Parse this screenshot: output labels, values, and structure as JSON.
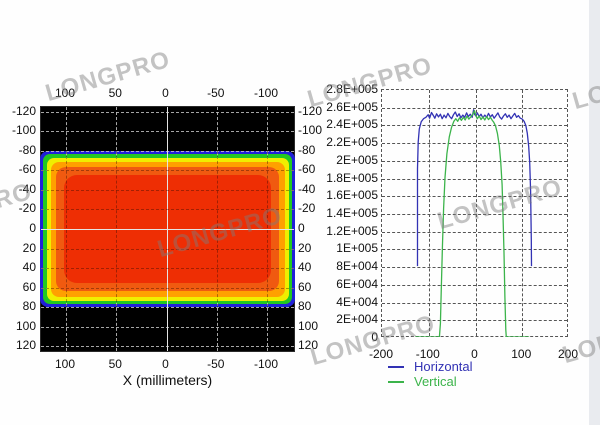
{
  "watermark": {
    "text": "LONGPRO",
    "color": "rgba(125,125,125,0.45)"
  },
  "left_plot": {
    "xlabel": "X (millimeters)",
    "x_ticks": [
      {
        "label": "100",
        "mm": 100
      },
      {
        "label": "50",
        "mm": 50
      },
      {
        "label": "0",
        "mm": 0
      },
      {
        "label": "-50",
        "mm": -50
      },
      {
        "label": "-100",
        "mm": -100
      }
    ],
    "y_ticks": [
      {
        "label": "-120",
        "mm": -120
      },
      {
        "label": "-100",
        "mm": -100
      },
      {
        "label": "-80",
        "mm": -80
      },
      {
        "label": "-60",
        "mm": -60
      },
      {
        "label": "-40",
        "mm": -40
      },
      {
        "label": "-20",
        "mm": -20
      },
      {
        "label": "0",
        "mm": 0
      },
      {
        "label": "20",
        "mm": 20
      },
      {
        "label": "40",
        "mm": 40
      },
      {
        "label": "60",
        "mm": 60
      },
      {
        "label": "80",
        "mm": 80
      },
      {
        "label": "100",
        "mm": 100
      },
      {
        "label": "120",
        "mm": 120
      }
    ]
  },
  "chart_data": [
    {
      "id": "beam_intensity_map",
      "type": "heatmap",
      "xlabel": "X (millimeters)",
      "x_axis_reversed": true,
      "x_range_mm": [
        130,
        -130
      ],
      "y_range_mm": [
        -125,
        128
      ],
      "beam_extent_x_mm": [
        -125,
        125
      ],
      "beam_extent_y_mm": [
        -80,
        80
      ],
      "peak_intensity": 250000,
      "colormap": "jet",
      "band_colors_outer_to_inner": [
        "#2020d8",
        "#22c822",
        "#f0ee00",
        "#ffa000",
        "#f05a10",
        "#ee2e04"
      ],
      "background_color": "#000000",
      "crosshair_color": "#e4e4e4"
    },
    {
      "id": "beam_profiles",
      "type": "line",
      "xlim": [
        -200,
        200
      ],
      "ylim": [
        0,
        280000
      ],
      "x_ticks": [
        {
          "label": "-200",
          "v": -200
        },
        {
          "label": "-100",
          "v": -100
        },
        {
          "label": "0",
          "v": 0
        },
        {
          "label": "100",
          "v": 100
        },
        {
          "label": "200",
          "v": 200
        }
      ],
      "y_ticks": [
        {
          "label": "2.8E+005",
          "v": 280000
        },
        {
          "label": "2.6E+005",
          "v": 260000
        },
        {
          "label": "2.4E+005",
          "v": 240000
        },
        {
          "label": "2.2E+005",
          "v": 220000
        },
        {
          "label": "2E+005",
          "v": 200000
        },
        {
          "label": "1.8E+005",
          "v": 180000
        },
        {
          "label": "1.6E+005",
          "v": 160000
        },
        {
          "label": "1.4E+005",
          "v": 140000
        },
        {
          "label": "1.2E+005",
          "v": 120000
        },
        {
          "label": "1E+005",
          "v": 100000
        },
        {
          "label": "8E+004",
          "v": 80000
        },
        {
          "label": "6E+004",
          "v": 60000
        },
        {
          "label": "4E+004",
          "v": 40000
        },
        {
          "label": "2E+004",
          "v": 20000
        },
        {
          "label": "0",
          "v": 0
        }
      ],
      "grid": "dashed",
      "legend_position": "bottom-left",
      "series": [
        {
          "name": "Horizontal",
          "color": "#3232b4",
          "points": [
            [
              -122,
              80000
            ],
            [
              -122,
              190000
            ],
            [
              -120.5,
              220000
            ],
            [
              -118,
              235000
            ],
            [
              -114,
              243000
            ],
            [
              -109,
              246500
            ],
            [
              -104,
              248000
            ],
            [
              -99,
              251000
            ],
            [
              -96,
              247000
            ],
            [
              -92,
              253500
            ],
            [
              -88,
              250000
            ],
            [
              -85,
              247000
            ],
            [
              -81,
              252000
            ],
            [
              -77,
              248500
            ],
            [
              -73,
              251500
            ],
            [
              -69,
              246500
            ],
            [
              -65,
              250500
            ],
            [
              -61,
              247500
            ],
            [
              -57,
              252500
            ],
            [
              -53,
              249000
            ],
            [
              -49,
              246500
            ],
            [
              -45,
              251000
            ],
            [
              -41,
              254000
            ],
            [
              -37,
              249000
            ],
            [
              -33,
              252000
            ],
            [
              -29,
              247500
            ],
            [
              -25,
              250500
            ],
            [
              -21,
              248000
            ],
            [
              -17,
              253000
            ],
            [
              -13,
              249000
            ],
            [
              -9,
              251500
            ],
            [
              -5,
              248000
            ],
            [
              -2,
              256500
            ],
            [
              0,
              251500
            ],
            [
              3,
              249500
            ],
            [
              6,
              253000
            ],
            [
              10,
              249000
            ],
            [
              14,
              251500
            ],
            [
              18,
              247500
            ],
            [
              22,
              250500
            ],
            [
              26,
              248000
            ],
            [
              30,
              252500
            ],
            [
              34,
              248500
            ],
            [
              38,
              251000
            ],
            [
              42,
              247000
            ],
            [
              46,
              250000
            ],
            [
              50,
              253000
            ],
            [
              54,
              248500
            ],
            [
              58,
              246000
            ],
            [
              62,
              249500
            ],
            [
              66,
              252000
            ],
            [
              70,
              248000
            ],
            [
              74,
              250500
            ],
            [
              78,
              246500
            ],
            [
              82,
              249500
            ],
            [
              86,
              252500
            ],
            [
              90,
              248000
            ],
            [
              94,
              250000
            ],
            [
              98,
              247000
            ],
            [
              102,
              246000
            ],
            [
              106,
              243500
            ],
            [
              110,
              238500
            ],
            [
              113,
              230000
            ],
            [
              116,
              215000
            ],
            [
              118,
              197000
            ],
            [
              120,
              165000
            ],
            [
              121.5,
              110000
            ],
            [
              122,
              80000
            ]
          ]
        },
        {
          "name": "Vertical",
          "color": "#3cb44b",
          "points": [
            [
              -127,
              0
            ],
            [
              -75,
              0
            ],
            [
              -73,
              15000
            ],
            [
              -71,
              55000
            ],
            [
              -68.5,
              105000
            ],
            [
              -66,
              145000
            ],
            [
              -63,
              180000
            ],
            [
              -59,
              207000
            ],
            [
              -54,
              226000
            ],
            [
              -49,
              237000
            ],
            [
              -44,
              243500
            ],
            [
              -40,
              246500
            ],
            [
              -36,
              243500
            ],
            [
              -32,
              247500
            ],
            [
              -28,
              244500
            ],
            [
              -24,
              248000
            ],
            [
              -20,
              245000
            ],
            [
              -16,
              249500
            ],
            [
              -12,
              246000
            ],
            [
              -8,
              248500
            ],
            [
              -4,
              251000
            ],
            [
              0,
              255500
            ],
            [
              3,
              250000
            ],
            [
              6,
              246500
            ],
            [
              10,
              249500
            ],
            [
              14,
              245500
            ],
            [
              18,
              248500
            ],
            [
              22,
              245000
            ],
            [
              26,
              249000
            ],
            [
              30,
              245500
            ],
            [
              34,
              248000
            ],
            [
              38,
              244500
            ],
            [
              41,
              242500
            ],
            [
              45,
              238500
            ],
            [
              49,
              230000
            ],
            [
              53,
              216000
            ],
            [
              56,
              198000
            ],
            [
              59,
              172000
            ],
            [
              61,
              138000
            ],
            [
              63,
              95000
            ],
            [
              65,
              45000
            ],
            [
              67,
              8000
            ],
            [
              68,
              0
            ],
            [
              117,
              0
            ]
          ]
        }
      ]
    }
  ]
}
